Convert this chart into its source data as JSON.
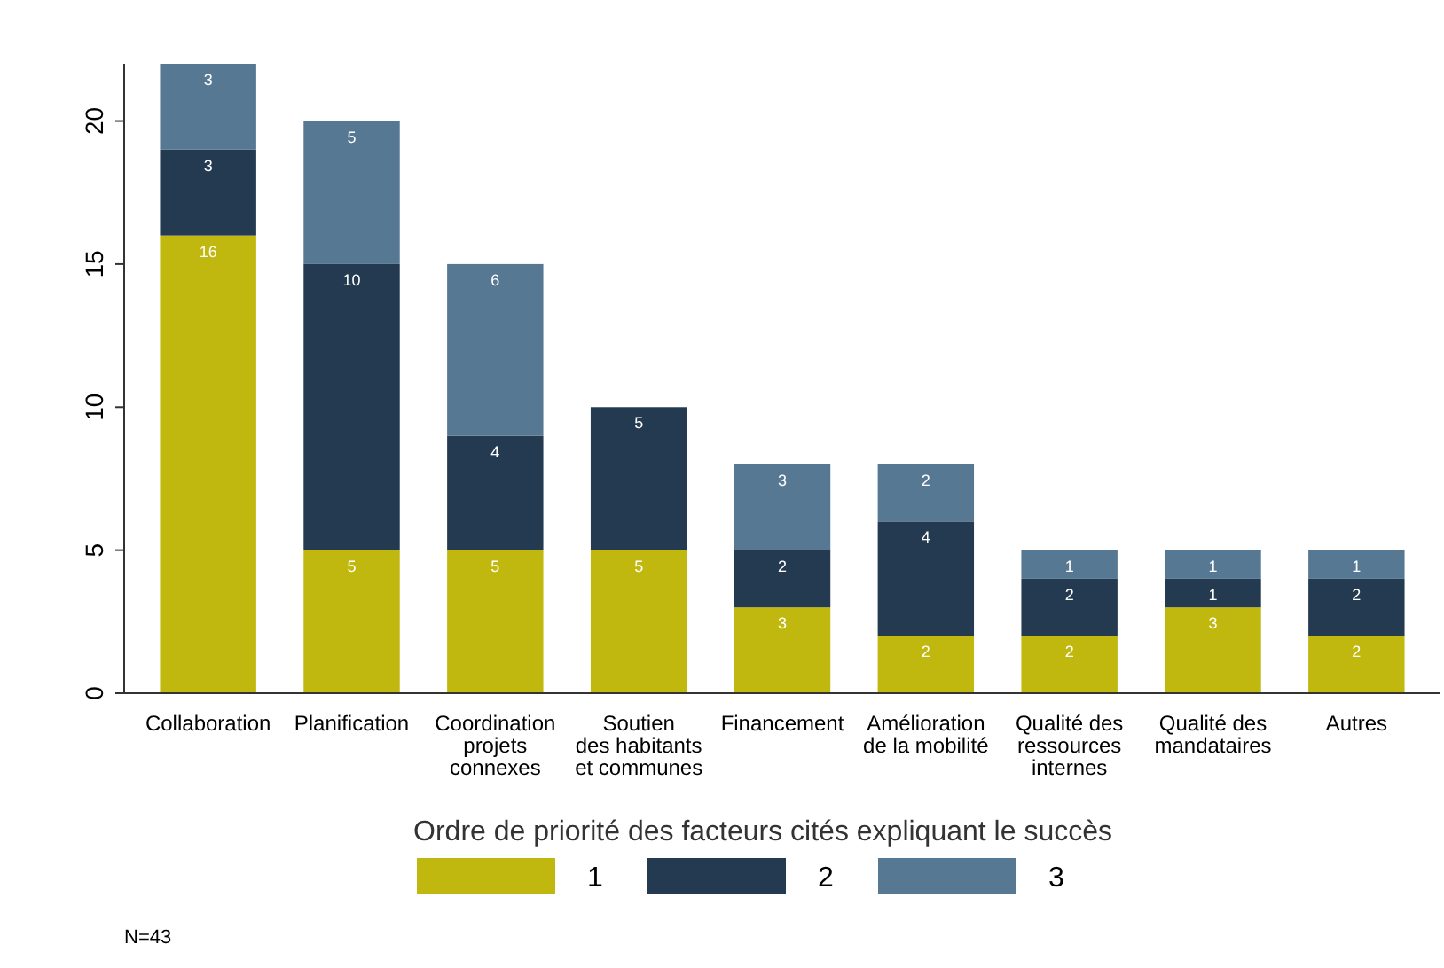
{
  "chart_data": {
    "type": "bar",
    "stacked": true,
    "categories": [
      "Collaboration",
      "Planification",
      "Coordination\nprojets\nconnexes",
      "Soutien\ndes habitants\net communes",
      "Financement",
      "Amélioration\nde la mobilité",
      "Qualité des\nressources\ninternes",
      "Qualité des\nmandataires",
      "Autres"
    ],
    "series": [
      {
        "name": "1",
        "color": "#c0b80e",
        "values": [
          16,
          5,
          5,
          5,
          3,
          2,
          2,
          3,
          2
        ]
      },
      {
        "name": "2",
        "color": "#243a51",
        "values": [
          3,
          10,
          4,
          5,
          2,
          4,
          2,
          1,
          2
        ]
      },
      {
        "name": "3",
        "color": "#577893",
        "values": [
          3,
          5,
          6,
          null,
          3,
          2,
          1,
          1,
          1
        ]
      }
    ],
    "ylim": [
      0,
      22
    ],
    "yticks": [
      0,
      5,
      10,
      15,
      20
    ],
    "grid": false,
    "data_labels": true,
    "legend": "bottom",
    "legend_title": "Ordre de priorité des facteurs cités expliquant le succès",
    "annotations": [
      "N=43"
    ]
  }
}
